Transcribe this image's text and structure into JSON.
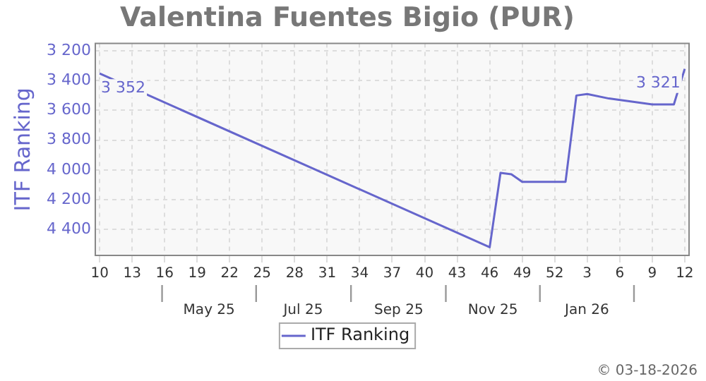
{
  "chart_data": {
    "type": "line",
    "title": "Valentina Fuentes Bigio (PUR)",
    "ylabel": "ITF Ranking",
    "categories": [
      "10",
      null,
      null,
      "13",
      null,
      null,
      "16",
      null,
      null,
      "19",
      null,
      null,
      "22",
      null,
      null,
      "25",
      null,
      null,
      "28",
      null,
      null,
      "31",
      null,
      null,
      "34",
      null,
      null,
      "37",
      null,
      null,
      "40",
      null,
      null,
      "43",
      null,
      null,
      "46",
      null,
      null,
      "49",
      null,
      null,
      "52",
      null,
      null,
      "3",
      null,
      null,
      "6",
      null,
      null,
      "9",
      null,
      null,
      "12"
    ],
    "series": [
      {
        "name": "ITF Ranking",
        "color": "#6666cc",
        "values": [
          3352,
          null,
          null,
          null,
          null,
          null,
          null,
          null,
          null,
          null,
          null,
          null,
          null,
          null,
          null,
          null,
          null,
          null,
          null,
          null,
          null,
          null,
          null,
          null,
          null,
          null,
          null,
          null,
          null,
          null,
          null,
          null,
          null,
          null,
          null,
          null,
          4520,
          4020,
          4030,
          4080,
          4080,
          null,
          null,
          4080,
          3500,
          3490,
          null,
          3520,
          null,
          3540,
          null,
          3560,
          null,
          3560,
          3321
        ],
        "value_labels": [
          "3 352",
          null,
          null,
          null,
          null,
          null,
          null,
          null,
          null,
          null,
          null,
          null,
          null,
          null,
          null,
          null,
          null,
          null,
          null,
          null,
          null,
          null,
          null,
          null,
          null,
          null,
          null,
          null,
          null,
          null,
          null,
          null,
          null,
          null,
          null,
          null,
          null,
          null,
          null,
          null,
          null,
          null,
          null,
          null,
          null,
          null,
          null,
          null,
          null,
          null,
          null,
          null,
          null,
          null,
          "3 321"
        ]
      }
    ],
    "x2lim": [
      "2025-02-28T05:00",
      "2026-03-20T05:00"
    ],
    "x2ticks": [
      {
        "value": "2025-05-13",
        "label": "May 25"
      },
      {
        "value": "2025-07-13",
        "label": "Jul 25"
      },
      {
        "value": "2025-09-13",
        "label": "Sep 25"
      },
      {
        "value": "2025-11-13",
        "label": "Nov 25"
      },
      {
        "value": "2026-01-13",
        "label": "Jan 26"
      }
    ],
    "ylim": [
      4575,
      3150
    ],
    "yticks": [
      {
        "value": 3200,
        "label": "3 200"
      },
      {
        "value": 3400,
        "label": "3 400"
      },
      {
        "value": 3600,
        "label": "3 600"
      },
      {
        "value": 3800,
        "label": "3 800"
      },
      {
        "value": 4000,
        "label": "4 000"
      },
      {
        "value": 4200,
        "label": "4 200"
      },
      {
        "value": 4400,
        "label": "4 400"
      }
    ],
    "grid": true,
    "legend": "bottom",
    "marker": "none",
    "line_style": "solid",
    "annotations": [
      "© 03-18-2026"
    ]
  }
}
